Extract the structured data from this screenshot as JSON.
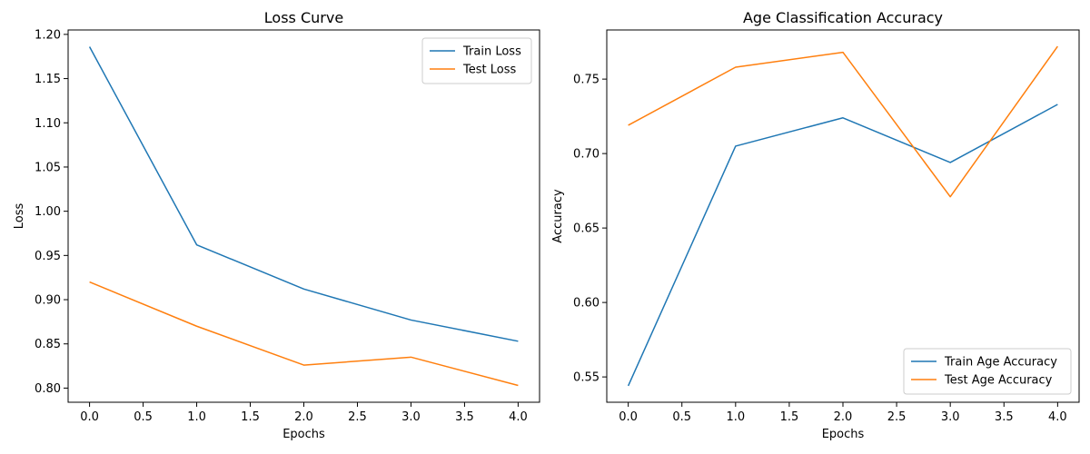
{
  "chart_data": [
    {
      "type": "line",
      "title": "Loss Curve",
      "xlabel": "Epochs",
      "ylabel": "Loss",
      "x": [
        0,
        1,
        2,
        3,
        4
      ],
      "xlim": [
        -0.2,
        4.2
      ],
      "ylim": [
        0.784,
        1.205
      ],
      "xticks": [
        "0.0",
        "0.5",
        "1.0",
        "1.5",
        "2.0",
        "2.5",
        "3.0",
        "3.5",
        "4.0"
      ],
      "yticks": [
        "0.80",
        "0.85",
        "0.90",
        "0.95",
        "1.00",
        "1.05",
        "1.10",
        "1.15",
        "1.20"
      ],
      "legend_position": "top-right",
      "grid": false,
      "series": [
        {
          "name": "Train Loss",
          "color": "#1f77b4",
          "values": [
            1.186,
            0.962,
            0.912,
            0.877,
            0.853
          ]
        },
        {
          "name": "Test Loss",
          "color": "#ff7f0e",
          "values": [
            0.92,
            0.87,
            0.826,
            0.835,
            0.803
          ]
        }
      ]
    },
    {
      "type": "line",
      "title": "Age Classification Accuracy",
      "xlabel": "Epochs",
      "ylabel": "Accuracy",
      "x": [
        0,
        1,
        2,
        3,
        4
      ],
      "xlim": [
        -0.2,
        4.2
      ],
      "ylim": [
        0.533,
        0.783
      ],
      "xticks": [
        "0.0",
        "0.5",
        "1.0",
        "1.5",
        "2.0",
        "2.5",
        "3.0",
        "3.5",
        "4.0"
      ],
      "yticks": [
        "0.55",
        "0.60",
        "0.65",
        "0.70",
        "0.75"
      ],
      "legend_position": "bottom-right",
      "grid": false,
      "series": [
        {
          "name": "Train Age Accuracy",
          "color": "#1f77b4",
          "values": [
            0.544,
            0.705,
            0.724,
            0.694,
            0.733
          ]
        },
        {
          "name": "Test Age Accuracy",
          "color": "#ff7f0e",
          "values": [
            0.719,
            0.758,
            0.768,
            0.671,
            0.772
          ]
        }
      ]
    }
  ]
}
